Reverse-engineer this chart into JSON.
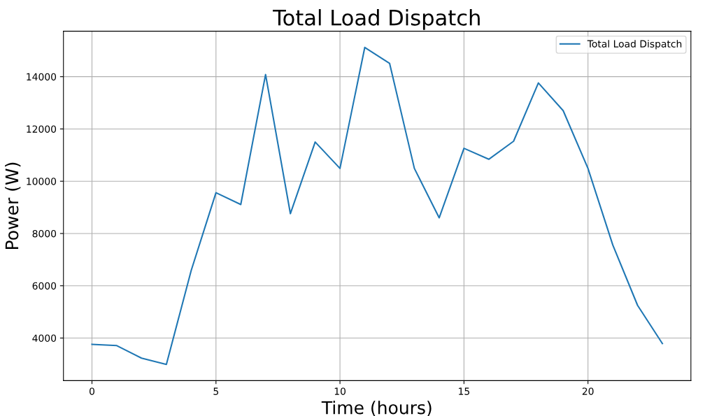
{
  "chart_data": {
    "type": "line",
    "title": "Total Load Dispatch",
    "xlabel": "Time (hours)",
    "ylabel": "Power (W)",
    "x": [
      0,
      1,
      2,
      3,
      4,
      5,
      6,
      7,
      8,
      9,
      10,
      11,
      12,
      13,
      14,
      15,
      16,
      17,
      18,
      19,
      20,
      21,
      22,
      23
    ],
    "series": [
      {
        "name": "Total Load Dispatch",
        "color": "#1f77b4",
        "values": [
          3760,
          3710,
          3230,
          2990,
          6580,
          9560,
          9110,
          14080,
          8760,
          11500,
          10490,
          15120,
          14510,
          10490,
          8600,
          11260,
          10840,
          11530,
          13760,
          12700,
          10490,
          7560,
          5250,
          3790
        ]
      }
    ],
    "xlim": [
      -1.15,
      24.15
    ],
    "xticks": [
      0,
      5,
      10,
      15,
      20
    ],
    "ylim": [
      2370,
      15740
    ],
    "yticks": [
      4000,
      6000,
      8000,
      10000,
      12000,
      14000
    ],
    "grid": true,
    "legend": "top right",
    "marker": "none",
    "line_style": "solid"
  }
}
